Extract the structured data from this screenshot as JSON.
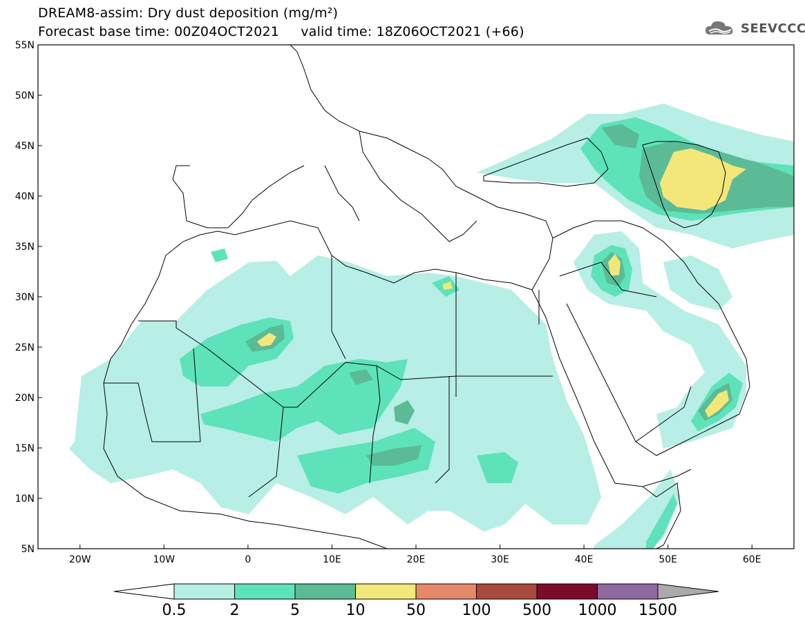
{
  "title": {
    "line1": "DREAM8-assim: Dry dust deposition (mg/m²)",
    "line2": "Forecast base time: 00Z04OCT2021     valid time: 18Z06OCT2021 (+66)"
  },
  "logo": {
    "text": "SEEVCCC",
    "icon": "cloud-icon"
  },
  "axes": {
    "lon_range": [
      -25,
      65
    ],
    "lat_range": [
      5,
      55
    ],
    "lon_ticks": [
      "20W",
      "10W",
      "0",
      "10E",
      "20E",
      "30E",
      "40E",
      "50E",
      "60E"
    ],
    "lat_ticks": [
      "55N",
      "50N",
      "45N",
      "40N",
      "35N",
      "30N",
      "25N",
      "20N",
      "15N",
      "10N",
      "5N"
    ]
  },
  "colorbar": {
    "labels": [
      "0.5",
      "2",
      "5",
      "10",
      "50",
      "100",
      "500",
      "1000",
      "1500"
    ],
    "colors": [
      "#b7eee6",
      "#5ee2ba",
      "#5bbb96",
      "#f3e77a",
      "#e6896a",
      "#ab4a3e",
      "#7c0a2c",
      "#8e6aa0"
    ],
    "low_arrow_color": "#ffffff",
    "high_arrow_color": "#aaaaaa"
  },
  "colors": {
    "l1": "#b7eee6",
    "l2": "#5ee2ba",
    "l3": "#5bbb96",
    "l4": "#f3e77a"
  }
}
